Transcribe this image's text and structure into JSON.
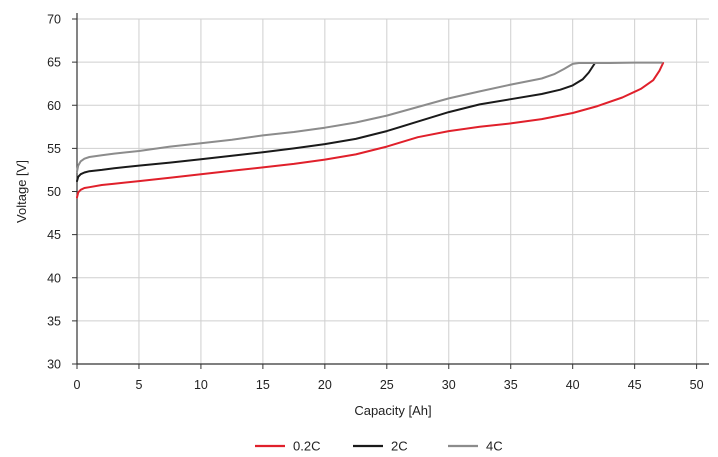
{
  "chart_data": {
    "type": "line",
    "title": "",
    "xlabel": "Capacity [Ah]",
    "ylabel": "Voltage [V]",
    "xlim": [
      0,
      51
    ],
    "ylim": [
      30,
      70
    ],
    "xticks": [
      0,
      5,
      10,
      15,
      20,
      25,
      30,
      35,
      40,
      45,
      50
    ],
    "yticks": [
      30,
      35,
      40,
      45,
      50,
      55,
      60,
      65,
      70
    ],
    "grid": true,
    "legend": "bottom-center",
    "series": [
      {
        "name": "0.2C",
        "color": "#e0202b",
        "x": [
          0,
          0.1,
          0.3,
          0.6,
          1,
          2,
          3,
          5,
          7.5,
          10,
          12.5,
          15,
          17.5,
          20,
          22.5,
          25,
          27.5,
          30,
          32.5,
          35,
          37.5,
          40,
          42,
          44,
          45.5,
          46.5,
          47,
          47.3
        ],
        "y": [
          49.3,
          49.9,
          50.2,
          50.4,
          50.5,
          50.75,
          50.9,
          51.2,
          51.6,
          52.0,
          52.4,
          52.8,
          53.2,
          53.7,
          54.3,
          55.2,
          56.3,
          57.0,
          57.5,
          57.9,
          58.4,
          59.1,
          59.9,
          60.9,
          61.9,
          62.9,
          64.0,
          64.9
        ]
      },
      {
        "name": "2C",
        "color": "#1a1a1a",
        "x": [
          0,
          0.1,
          0.3,
          0.6,
          1,
          2,
          3,
          5,
          7.5,
          10,
          12.5,
          15,
          17.5,
          20,
          22.5,
          25,
          27.5,
          30,
          32.5,
          35,
          37.5,
          39,
          40,
          40.8,
          41.3,
          41.8
        ],
        "y": [
          51.2,
          51.7,
          52.0,
          52.2,
          52.35,
          52.5,
          52.7,
          53.0,
          53.35,
          53.75,
          54.15,
          54.55,
          55.0,
          55.5,
          56.1,
          57.0,
          58.1,
          59.2,
          60.1,
          60.7,
          61.3,
          61.8,
          62.3,
          63.0,
          63.8,
          64.9
        ]
      },
      {
        "name": "4C",
        "color": "#8c8c8c",
        "x": [
          0,
          0.1,
          0.3,
          0.6,
          1,
          2,
          3,
          5,
          7.5,
          10,
          12.5,
          15,
          17.5,
          20,
          22.5,
          25,
          27.5,
          30,
          32.5,
          35,
          37.5,
          38.5,
          39.3,
          40,
          40.5,
          41.5,
          43,
          45,
          47.2
        ],
        "y": [
          52.3,
          53.0,
          53.5,
          53.8,
          54.0,
          54.2,
          54.4,
          54.7,
          55.2,
          55.6,
          56.0,
          56.5,
          56.9,
          57.4,
          58.0,
          58.8,
          59.8,
          60.8,
          61.6,
          62.4,
          63.1,
          63.6,
          64.2,
          64.8,
          64.9,
          64.9,
          64.9,
          64.95,
          64.95
        ]
      }
    ]
  }
}
